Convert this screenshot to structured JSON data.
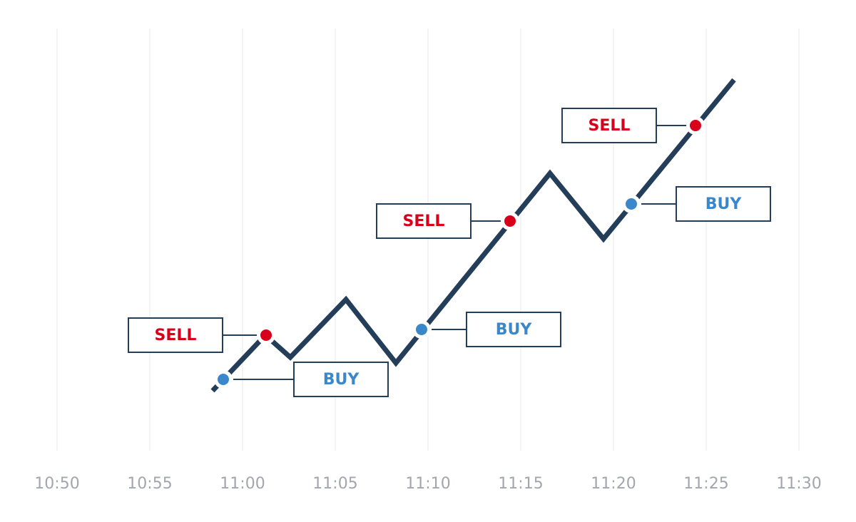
{
  "time_axis": {
    "ticks": [
      "10:50",
      "10:55",
      "11:00",
      "11:05",
      "11:10",
      "11:15",
      "11:20",
      "11:25",
      "11:30"
    ]
  },
  "signals": [
    {
      "label": "BUY"
    },
    {
      "label": "SELL"
    },
    {
      "label": "BUY"
    },
    {
      "label": "SELL"
    },
    {
      "label": "BUY"
    },
    {
      "label": "SELL"
    }
  ]
}
